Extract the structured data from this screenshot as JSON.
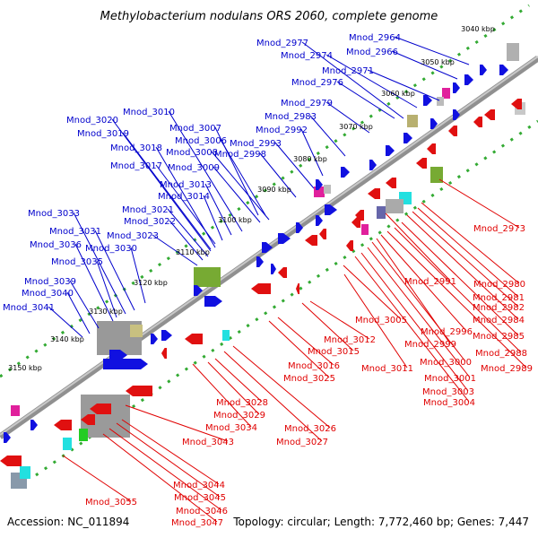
{
  "title": "Methylobacterium nodulans ORS 2060, complete genome",
  "footer": {
    "accession": "Accession: NC_011894",
    "stats": "Topology: circular; Length: 7,772,460 bp; Genes: 7,447"
  },
  "colors": {
    "forward_label": "#0000cc",
    "reverse_label": "#e00000",
    "forward_gene": "#1010e0",
    "reverse_gene": "#e01010",
    "backbone": "#707070",
    "tick": "#33aa33"
  },
  "kbp_marks": [
    "3040 kbp",
    "3050 kbp",
    "3060 kbp",
    "3070 kbp",
    "3080 kbp",
    "3090 kbp",
    "3100 kbp",
    "3110 kbp",
    "3120 kbp",
    "3130 kbp",
    "3140 kbp",
    "3150 kbp"
  ],
  "genes_forward": [
    "Mnod_2964",
    "Mnod_2966",
    "Mnod_2971",
    "Mnod_2974",
    "Mnod_2976",
    "Mnod_2977",
    "Mnod_2979",
    "Mnod_2983",
    "Mnod_2992",
    "Mnod_2993",
    "Mnod_2998",
    "Mnod_3006",
    "Mnod_3007",
    "Mnod_3008",
    "Mnod_3009",
    "Mnod_3010",
    "Mnod_3013",
    "Mnod_3014",
    "Mnod_3017",
    "Mnod_3018",
    "Mnod_3019",
    "Mnod_3020",
    "Mnod_3021",
    "Mnod_3022",
    "Mnod_3023",
    "Mnod_3030",
    "Mnod_3031",
    "Mnod_3033",
    "Mnod_3035",
    "Mnod_3036",
    "Mnod_3039",
    "Mnod_3040",
    "Mnod_3041"
  ],
  "genes_reverse": [
    "Mnod_2973",
    "Mnod_2980",
    "Mnod_2981",
    "Mnod_2982",
    "Mnod_2984",
    "Mnod_2985",
    "Mnod_2988",
    "Mnod_2989",
    "Mnod_2991",
    "Mnod_2996",
    "Mnod_2999",
    "Mnod_3000",
    "Mnod_3001",
    "Mnod_3003",
    "Mnod_3004",
    "Mnod_3005",
    "Mnod_3011",
    "Mnod_3012",
    "Mnod_3015",
    "Mnod_3016",
    "Mnod_3025",
    "Mnod_3026",
    "Mnod_3027",
    "Mnod_3028",
    "Mnod_3029",
    "Mnod_3034",
    "Mnod_3043",
    "Mnod_3044",
    "Mnod_3045",
    "Mnod_3046",
    "Mnod_3047",
    "Mnod_3055"
  ]
}
